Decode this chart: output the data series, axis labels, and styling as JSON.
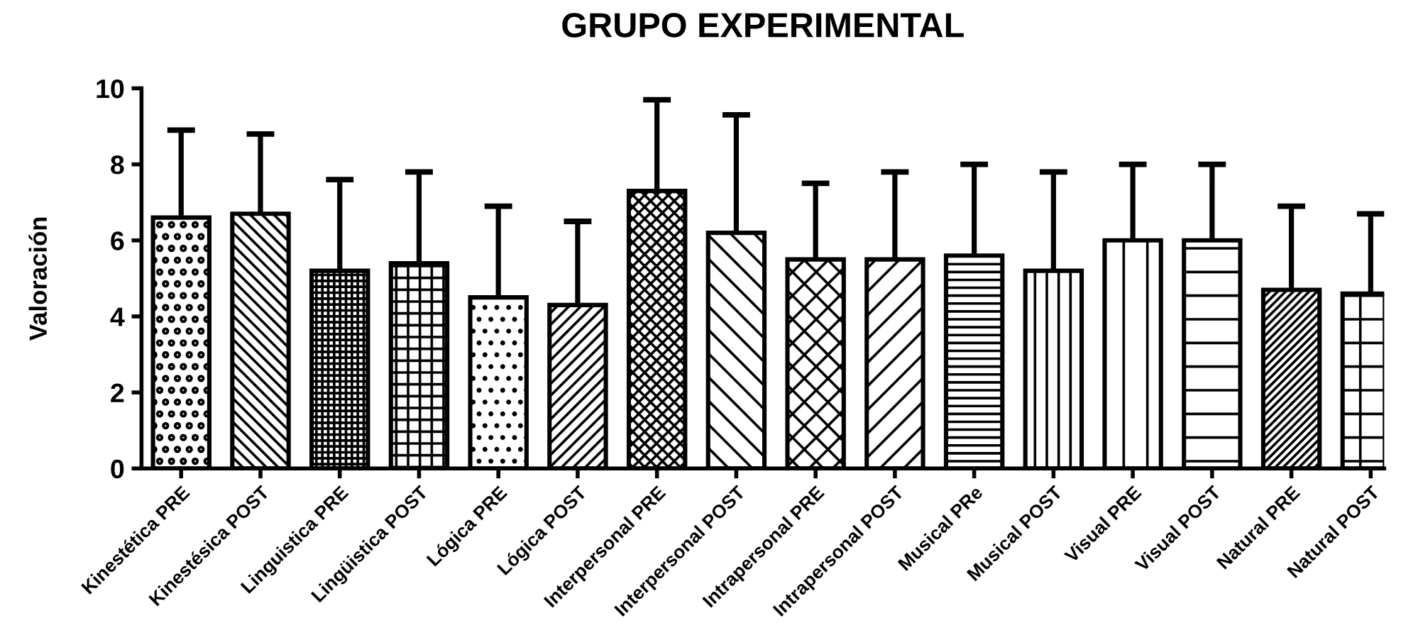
{
  "chart_data": {
    "type": "bar",
    "title": "GRUPO EXPERIMENTAL",
    "ylabel": "Valoración",
    "categories": [
      "Kinestética PRE",
      "Kinestésica POST",
      "Linguistica PRE",
      "Lingüistica POST",
      "Lógica PRE",
      "Lógica POST",
      "Interpersonal PRE",
      "Interpersonal POST",
      "Intrapersonal PRE",
      "Intrapersonal POST",
      "Musical PRe",
      "Musical POST",
      "Visual PRE",
      "Visual POST",
      "Natural PRE",
      "Natural POST"
    ],
    "values": [
      6.6,
      6.7,
      5.2,
      5.4,
      4.5,
      4.3,
      7.3,
      6.2,
      5.5,
      5.5,
      5.6,
      5.2,
      6.0,
      6.0,
      4.7,
      4.6
    ],
    "errors": [
      [
        6.6,
        8.9
      ],
      [
        6.7,
        8.8
      ],
      [
        5.2,
        7.6
      ],
      [
        5.4,
        7.8
      ],
      [
        4.5,
        6.9
      ],
      [
        4.3,
        6.5
      ],
      [
        7.3,
        9.7
      ],
      [
        6.2,
        9.3
      ],
      [
        5.5,
        7.5
      ],
      [
        5.5,
        7.8
      ],
      [
        5.6,
        8.0
      ],
      [
        5.2,
        7.8
      ],
      [
        6.0,
        8.0
      ],
      [
        6.0,
        8.0
      ],
      [
        4.7,
        6.9
      ],
      [
        4.6,
        6.7
      ]
    ],
    "color": "#000000",
    "ylim": [
      0,
      10
    ],
    "yticks": [
      0,
      2,
      4,
      6,
      8,
      10
    ]
  }
}
